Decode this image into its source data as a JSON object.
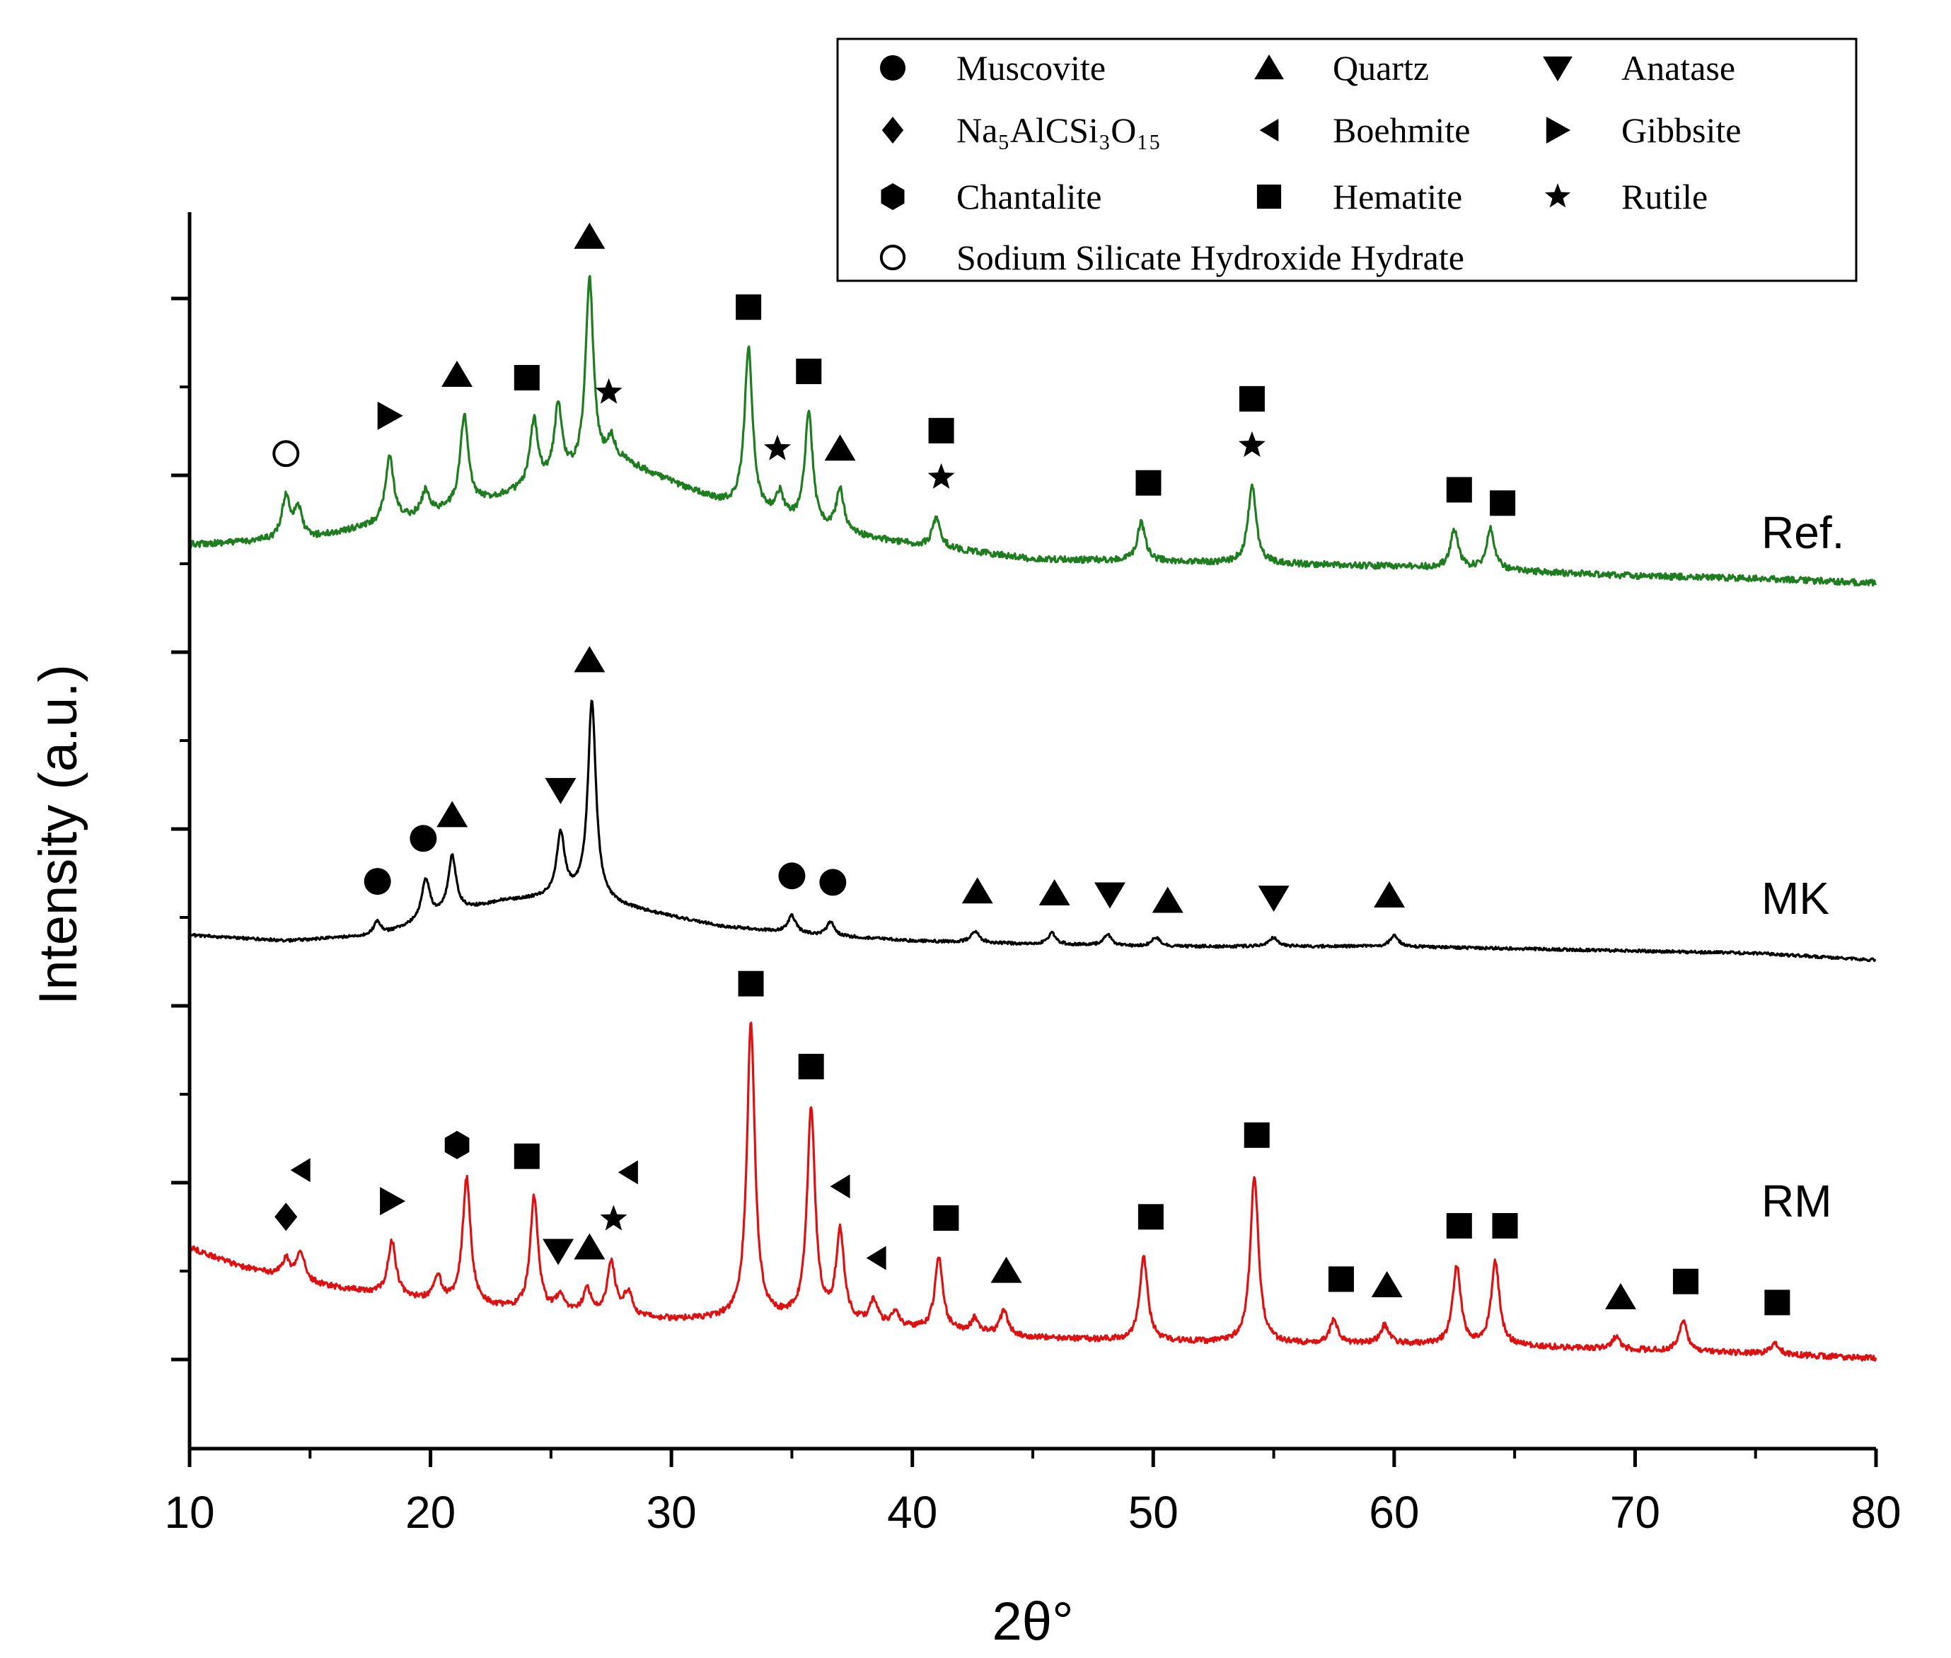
{
  "chart_data": {
    "type": "line",
    "title": "",
    "xlabel": "2θ°",
    "ylabel": "Intensity (a.u.)",
    "xlim": [
      10,
      80
    ],
    "x_ticks": [
      "10",
      "20",
      "30",
      "40",
      "50",
      "60",
      "70",
      "80"
    ],
    "y_ticks_labeled": false,
    "colors": {
      "Ref.": "#1e7d1e",
      "MK": "#000000",
      "RM": "#dd1111"
    },
    "series": [
      {
        "name": "Ref.",
        "color": "#1e7d1e",
        "baseline": [
          [
            10,
            0.0
          ],
          [
            15,
            0.05
          ],
          [
            20,
            0.25
          ],
          [
            24,
            0.45
          ],
          [
            28,
            0.68
          ],
          [
            32,
            0.35
          ],
          [
            36,
            0.12
          ],
          [
            40,
            0.0
          ],
          [
            45,
            -0.12
          ],
          [
            50,
            -0.14
          ],
          [
            55,
            -0.16
          ],
          [
            60,
            -0.18
          ],
          [
            65,
            -0.22
          ],
          [
            70,
            -0.26
          ],
          [
            75,
            -0.28
          ],
          [
            80,
            -0.32
          ]
        ],
        "peaks": [
          [
            14.0,
            0.35
          ],
          [
            14.5,
            0.25
          ],
          [
            18.3,
            0.55
          ],
          [
            19.8,
            0.2
          ],
          [
            21.4,
            0.75
          ],
          [
            24.3,
            0.55
          ],
          [
            25.3,
            0.6
          ],
          [
            26.6,
            1.6
          ],
          [
            27.5,
            0.2
          ],
          [
            33.2,
            1.35
          ],
          [
            34.5,
            0.2
          ],
          [
            35.7,
            0.95
          ],
          [
            37.0,
            0.35
          ],
          [
            41.0,
            0.25
          ],
          [
            49.5,
            0.32
          ],
          [
            54.1,
            0.65
          ],
          [
            62.5,
            0.32
          ],
          [
            64.0,
            0.35
          ]
        ]
      },
      {
        "name": "MK",
        "color": "#000000",
        "baseline": [
          [
            10,
            0.0
          ],
          [
            14,
            -0.05
          ],
          [
            18,
            0.0
          ],
          [
            20,
            0.15
          ],
          [
            23,
            0.3
          ],
          [
            26,
            0.35
          ],
          [
            28,
            0.25
          ],
          [
            32,
            0.08
          ],
          [
            36,
            0.0
          ],
          [
            40,
            -0.05
          ],
          [
            45,
            -0.08
          ],
          [
            50,
            -0.1
          ],
          [
            55,
            -0.1
          ],
          [
            60,
            -0.1
          ],
          [
            65,
            -0.12
          ],
          [
            70,
            -0.14
          ],
          [
            75,
            -0.16
          ],
          [
            80,
            -0.22
          ]
        ],
        "peaks": [
          [
            17.8,
            0.12
          ],
          [
            19.8,
            0.35
          ],
          [
            20.9,
            0.5
          ],
          [
            25.4,
            0.55
          ],
          [
            26.7,
            1.75
          ],
          [
            35.0,
            0.15
          ],
          [
            36.6,
            0.12
          ],
          [
            42.6,
            0.1
          ],
          [
            45.8,
            0.1
          ],
          [
            48.1,
            0.1
          ],
          [
            50.1,
            0.08
          ],
          [
            55.0,
            0.08
          ],
          [
            60.0,
            0.1
          ]
        ]
      },
      {
        "name": "RM",
        "color": "#dd1111",
        "baseline": [
          [
            10,
            0.8
          ],
          [
            12,
            0.65
          ],
          [
            15,
            0.5
          ],
          [
            20,
            0.35
          ],
          [
            25,
            0.25
          ],
          [
            30,
            0.2
          ],
          [
            35,
            0.2
          ],
          [
            40,
            0.12
          ],
          [
            45,
            0.05
          ],
          [
            50,
            0.02
          ],
          [
            55,
            0.0
          ],
          [
            60,
            0.0
          ],
          [
            65,
            -0.02
          ],
          [
            70,
            -0.05
          ],
          [
            75,
            -0.08
          ],
          [
            80,
            -0.12
          ]
        ],
        "peaks": [
          [
            14.0,
            0.15
          ],
          [
            14.6,
            0.25
          ],
          [
            18.4,
            0.45
          ],
          [
            20.3,
            0.2
          ],
          [
            21.5,
            1.05
          ],
          [
            24.3,
            0.95
          ],
          [
            25.4,
            0.15
          ],
          [
            26.5,
            0.2
          ],
          [
            27.5,
            0.45
          ],
          [
            28.2,
            0.2
          ],
          [
            33.3,
            2.45
          ],
          [
            35.8,
            1.75
          ],
          [
            37.0,
            0.75
          ],
          [
            38.4,
            0.2
          ],
          [
            39.3,
            0.12
          ],
          [
            41.1,
            0.6
          ],
          [
            42.6,
            0.12
          ],
          [
            43.8,
            0.2
          ],
          [
            49.6,
            0.7
          ],
          [
            54.2,
            1.4
          ],
          [
            57.5,
            0.2
          ],
          [
            59.6,
            0.15
          ],
          [
            62.6,
            0.65
          ],
          [
            64.2,
            0.7
          ],
          [
            69.2,
            0.1
          ],
          [
            72.0,
            0.25
          ],
          [
            75.8,
            0.1
          ]
        ]
      }
    ],
    "series_labels": [
      "Ref.",
      "MK",
      "RM"
    ],
    "legend": {
      "position": "top-right",
      "entries": [
        {
          "label": "Muscovite",
          "marker": "circle"
        },
        {
          "label": "Quartz",
          "marker": "triangle-up"
        },
        {
          "label": "Anatase",
          "marker": "triangle-down"
        },
        {
          "label": "Na₅AlCSi₃O₁₅",
          "marker": "diamond"
        },
        {
          "label": "Boehmite",
          "marker": "triangle-left"
        },
        {
          "label": "Gibbsite",
          "marker": "triangle-right"
        },
        {
          "label": "Chantalite",
          "marker": "hexagon"
        },
        {
          "label": "Hematite",
          "marker": "square"
        },
        {
          "label": "Rutile",
          "marker": "star"
        },
        {
          "label": "Sodium Silicate Hydroxide Hydrate",
          "marker": "open-circle"
        }
      ]
    },
    "annotations": {
      "Ref.": [
        {
          "phase": "Sodium Silicate Hydroxide Hydrate",
          "marker": "open-circle",
          "x": 14.0
        },
        {
          "phase": "Gibbsite",
          "marker": "triangle-right",
          "x": 18.3
        },
        {
          "phase": "Quartz",
          "marker": "triangle-up",
          "x": 21.1
        },
        {
          "phase": "Hematite",
          "marker": "square",
          "x": 24.0
        },
        {
          "phase": "Quartz",
          "marker": "triangle-up",
          "x": 26.6
        },
        {
          "phase": "Rutile",
          "marker": "star",
          "x": 27.4
        },
        {
          "phase": "Hematite",
          "marker": "square",
          "x": 33.2
        },
        {
          "phase": "Rutile",
          "marker": "star",
          "x": 34.4
        },
        {
          "phase": "Hematite",
          "marker": "square",
          "x": 35.7
        },
        {
          "phase": "Quartz",
          "marker": "triangle-up",
          "x": 37.0
        },
        {
          "phase": "Rutile",
          "marker": "star",
          "x": 41.2
        },
        {
          "phase": "Hematite",
          "marker": "square",
          "x": 41.2
        },
        {
          "phase": "Hematite",
          "marker": "square",
          "x": 49.8
        },
        {
          "phase": "Rutile",
          "marker": "star",
          "x": 54.1
        },
        {
          "phase": "Hematite",
          "marker": "square",
          "x": 54.1
        },
        {
          "phase": "Hematite",
          "marker": "square",
          "x": 62.7
        },
        {
          "phase": "Hematite",
          "marker": "square",
          "x": 64.5
        }
      ],
      "MK": [
        {
          "phase": "Muscovite",
          "marker": "circle",
          "x": 17.8
        },
        {
          "phase": "Muscovite",
          "marker": "circle",
          "x": 19.7
        },
        {
          "phase": "Quartz",
          "marker": "triangle-up",
          "x": 20.9
        },
        {
          "phase": "Anatase",
          "marker": "triangle-down",
          "x": 25.4
        },
        {
          "phase": "Quartz",
          "marker": "triangle-up",
          "x": 26.6
        },
        {
          "phase": "Muscovite",
          "marker": "circle",
          "x": 35.0
        },
        {
          "phase": "Muscovite",
          "marker": "circle",
          "x": 36.7
        },
        {
          "phase": "Quartz",
          "marker": "triangle-up",
          "x": 42.7
        },
        {
          "phase": "Quartz",
          "marker": "triangle-up",
          "x": 45.9
        },
        {
          "phase": "Anatase",
          "marker": "triangle-down",
          "x": 48.2
        },
        {
          "phase": "Quartz",
          "marker": "triangle-up",
          "x": 50.6
        },
        {
          "phase": "Anatase",
          "marker": "triangle-down",
          "x": 55.0
        },
        {
          "phase": "Quartz",
          "marker": "triangle-up",
          "x": 59.8
        }
      ],
      "RM": [
        {
          "phase": "Na₅AlCSi₃O₁₅",
          "marker": "diamond",
          "x": 14.0
        },
        {
          "phase": "Boehmite",
          "marker": "triangle-left",
          "x": 14.6
        },
        {
          "phase": "Gibbsite",
          "marker": "triangle-right",
          "x": 18.4
        },
        {
          "phase": "Chantalite",
          "marker": "hexagon",
          "x": 21.1
        },
        {
          "phase": "Hematite",
          "marker": "square",
          "x": 24.0
        },
        {
          "phase": "Anatase",
          "marker": "triangle-down",
          "x": 25.3
        },
        {
          "phase": "Quartz",
          "marker": "triangle-up",
          "x": 26.6
        },
        {
          "phase": "Rutile",
          "marker": "star",
          "x": 27.6
        },
        {
          "phase": "Boehmite",
          "marker": "triangle-left",
          "x": 28.2
        },
        {
          "phase": "Hematite",
          "marker": "square",
          "x": 33.3
        },
        {
          "phase": "Hematite",
          "marker": "square",
          "x": 35.8
        },
        {
          "phase": "Boehmite",
          "marker": "triangle-left",
          "x": 37.0
        },
        {
          "phase": "Boehmite",
          "marker": "triangle-left",
          "x": 38.5
        },
        {
          "phase": "Hematite",
          "marker": "square",
          "x": 41.4
        },
        {
          "phase": "Quartz",
          "marker": "triangle-up",
          "x": 43.9
        },
        {
          "phase": "Hematite",
          "marker": "square",
          "x": 49.9
        },
        {
          "phase": "Hematite",
          "marker": "square",
          "x": 54.3
        },
        {
          "phase": "Hematite",
          "marker": "square",
          "x": 57.8
        },
        {
          "phase": "Quartz",
          "marker": "triangle-up",
          "x": 59.7
        },
        {
          "phase": "Hematite",
          "marker": "square",
          "x": 62.7
        },
        {
          "phase": "Hematite",
          "marker": "square",
          "x": 64.6
        },
        {
          "phase": "Quartz",
          "marker": "triangle-up",
          "x": 69.4
        },
        {
          "phase": "Hematite",
          "marker": "square",
          "x": 72.1
        },
        {
          "phase": "Hematite",
          "marker": "square",
          "x": 75.9
        }
      ]
    }
  }
}
